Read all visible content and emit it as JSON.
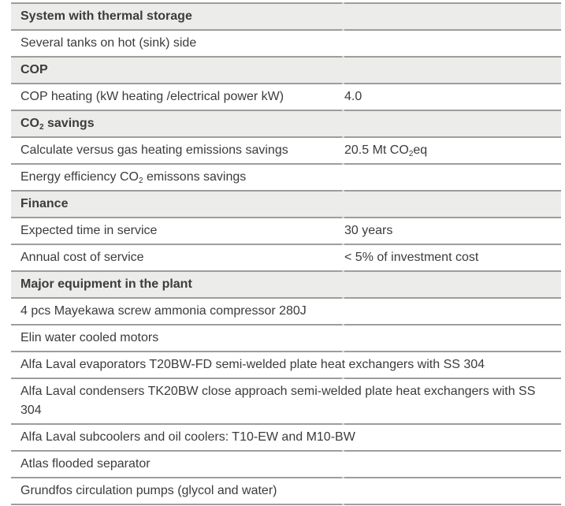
{
  "page": {
    "background_color": "#ffffff",
    "text_color": "#3d3b3b",
    "border_color": "#a19c9c",
    "border_break_color": "#d4d0cf",
    "section_header_bg_color": "#ececea"
  },
  "table": {
    "rows": [
      {
        "type": "section",
        "label_parts": [
          {
            "text": "System with thermal storage"
          }
        ]
      },
      {
        "type": "item",
        "label_parts": [
          {
            "text": "Several tanks on hot (sink) side"
          }
        ]
      },
      {
        "type": "section",
        "label_parts": [
          {
            "text": "COP"
          }
        ]
      },
      {
        "type": "item",
        "label_parts": [
          {
            "text": "COP heating (kW heating /electrical power kW)"
          }
        ],
        "value_parts": [
          {
            "text": "4.0"
          }
        ]
      },
      {
        "type": "section",
        "label_parts": [
          {
            "text": "CO"
          },
          {
            "text": "2",
            "subscript": true
          },
          {
            "text": " savings"
          }
        ]
      },
      {
        "type": "item",
        "label_parts": [
          {
            "text": "Calculate versus gas heating emissions savings"
          }
        ],
        "value_parts": [
          {
            "text": "20.5 Mt CO"
          },
          {
            "text": "2",
            "subscript": true
          },
          {
            "text": "eq"
          }
        ]
      },
      {
        "type": "item",
        "label_parts": [
          {
            "text": "Energy efficiency CO"
          },
          {
            "text": "2",
            "subscript": true
          },
          {
            "text": " emissons savings"
          }
        ]
      },
      {
        "type": "section",
        "label_parts": [
          {
            "text": "Finance"
          }
        ]
      },
      {
        "type": "item",
        "label_parts": [
          {
            "text": "Expected time in service"
          }
        ],
        "value_parts": [
          {
            "text": "30 years"
          }
        ]
      },
      {
        "type": "item",
        "label_parts": [
          {
            "text": "Annual cost of service"
          }
        ],
        "value_parts": [
          {
            "text": "< 5% of investment cost"
          }
        ]
      },
      {
        "type": "section",
        "label_parts": [
          {
            "text": "Major equipment in the plant"
          }
        ]
      },
      {
        "type": "item",
        "label_parts": [
          {
            "text": "4 pcs Mayekawa screw ammonia compressor 280J"
          }
        ]
      },
      {
        "type": "item",
        "label_parts": [
          {
            "text": "Elin water cooled motors"
          }
        ]
      },
      {
        "type": "item",
        "label_parts": [
          {
            "text": "Alfa Laval evaporators T20BW-FD semi-welded plate heat exchangers with SS 304"
          }
        ]
      },
      {
        "type": "item",
        "label_parts": [
          {
            "text": "Alfa Laval condensers TK20BW close approach semi-welded plate heat exchangers with SS 304"
          }
        ]
      },
      {
        "type": "item",
        "label_parts": [
          {
            "text": "Alfa Laval subcoolers and oil coolers: T10-EW and M10-BW"
          }
        ]
      },
      {
        "type": "item",
        "label_parts": [
          {
            "text": "Atlas flooded separator"
          }
        ]
      },
      {
        "type": "item",
        "label_parts": [
          {
            "text": "Grundfos circulation pumps (glycol and water)"
          }
        ]
      }
    ]
  }
}
